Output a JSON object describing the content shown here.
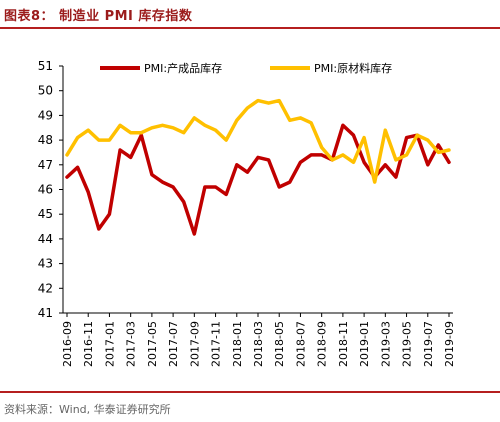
{
  "figure": {
    "title": "图表8： 制造业 PMI 库存指数",
    "source": "资料来源：Wind, 华泰证券研究所"
  },
  "chart_data": {
    "type": "line",
    "ylim": [
      41,
      51
    ],
    "y_ticks": [
      41,
      42,
      43,
      44,
      45,
      46,
      47,
      48,
      49,
      50,
      51
    ],
    "x_tick_labels": [
      "2016-09",
      "2016-11",
      "2017-01",
      "2017-03",
      "2017-05",
      "2017-07",
      "2017-09",
      "2017-11",
      "2018-01",
      "2018-03",
      "2018-05",
      "2018-07",
      "2018-09",
      "2018-11",
      "2019-01",
      "2019-03",
      "2019-05",
      "2019-07",
      "2019-09"
    ],
    "legend_position": "top",
    "grid": false,
    "series": [
      {
        "name": "PMI:产成品库存",
        "color": "#c00000",
        "values": [
          46.5,
          46.9,
          45.9,
          44.4,
          45.0,
          47.6,
          47.3,
          48.2,
          46.6,
          46.3,
          46.1,
          45.5,
          44.2,
          46.1,
          46.1,
          45.8,
          47.0,
          46.7,
          47.3,
          47.2,
          46.1,
          46.3,
          47.1,
          47.4,
          47.4,
          47.2,
          48.6,
          48.2,
          47.1,
          46.5,
          47.0,
          46.5,
          48.1,
          48.2,
          47.0,
          47.8,
          47.1
        ]
      },
      {
        "name": "PMI:原材料库存",
        "color": "#ffc000",
        "values": [
          47.4,
          48.1,
          48.4,
          48.0,
          48.0,
          48.6,
          48.3,
          48.3,
          48.5,
          48.6,
          48.5,
          48.3,
          48.9,
          48.6,
          48.4,
          48.0,
          48.8,
          49.3,
          49.6,
          49.5,
          49.6,
          48.8,
          48.9,
          48.7,
          47.7,
          47.2,
          47.4,
          47.1,
          48.1,
          46.3,
          48.4,
          47.2,
          47.4,
          48.2,
          48.0,
          47.5,
          47.6
        ]
      }
    ]
  }
}
